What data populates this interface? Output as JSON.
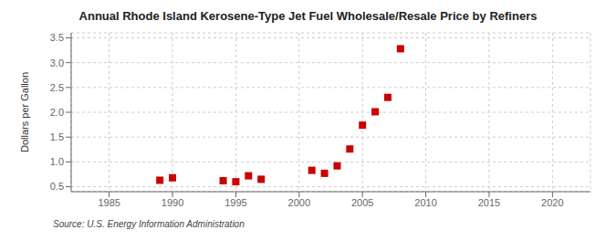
{
  "chart_data": {
    "type": "scatter",
    "title": "Annual Rhode Island Kerosene-Type Jet Fuel Wholesale/Resale Price by Refiners",
    "ylabel": "Dollars per Gallon",
    "source": "Source: U.S. Energy Information Administration",
    "x": [
      1989,
      1990,
      1994,
      1995,
      1996,
      1997,
      2001,
      2002,
      2003,
      2004,
      2005,
      2006,
      2007,
      2008
    ],
    "values": [
      0.63,
      0.68,
      0.62,
      0.6,
      0.72,
      0.65,
      0.83,
      0.77,
      0.92,
      1.26,
      1.74,
      2.01,
      2.3,
      3.28
    ],
    "color": "#cc0000",
    "marker": "square",
    "xlim": [
      1982,
      2023
    ],
    "ylim": [
      0.4,
      3.6
    ],
    "xticks": [
      1985,
      1990,
      1995,
      2000,
      2005,
      2010,
      2015,
      2020
    ],
    "yticks": [
      0.5,
      {
        "value": 1.0,
        "label": "1.0"
      },
      1.5,
      {
        "value": 2.0,
        "label": "2.0"
      },
      2.5,
      {
        "value": 3.0,
        "label": "3.0"
      },
      3.5
    ],
    "grid": true
  }
}
